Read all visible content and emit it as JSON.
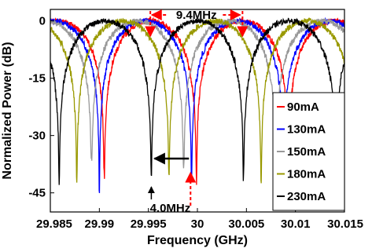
{
  "chart_data": {
    "type": "line",
    "title": "",
    "xlabel": "Frequency (GHz)",
    "ylabel": "Normalized Power (dB)",
    "xlim": [
      29.985,
      30.015
    ],
    "ylim": [
      -50,
      3
    ],
    "xticks": [
      29.985,
      29.99,
      29.995,
      30,
      30.005,
      30.01,
      30.015
    ],
    "xtick_labels": [
      "29.985",
      "29.99",
      "29.995",
      "30",
      "30.005",
      "30.01",
      "30.015"
    ],
    "yticks": [
      0,
      -15,
      -30,
      -45
    ],
    "ytick_labels": [
      "0",
      "-15",
      "-30",
      "-45"
    ],
    "grid": false,
    "legend_position": "right",
    "free_spectral_range_mhz": 9.4,
    "series": [
      {
        "name": "90mA",
        "color": "#ff0000",
        "peaks": [
          29.9858,
          29.9952,
          30.0046,
          30.014
        ],
        "minima": [
          29.9905,
          29.9999,
          30.0093
        ],
        "min_depth": -42
      },
      {
        "name": "130mA",
        "color": "#0000ff",
        "peaks": [
          29.9853,
          29.9947,
          30.0041,
          30.0135
        ],
        "minima": [
          29.99,
          29.9994,
          30.0088
        ],
        "min_depth": -45
      },
      {
        "name": "150mA",
        "color": "#999999",
        "peaks": [
          29.9845,
          29.9939,
          30.0033,
          30.0127
        ],
        "minima": [
          29.9892,
          29.9986,
          30.008
        ],
        "min_depth": -39
      },
      {
        "name": "180mA",
        "color": "#999900",
        "peaks": [
          29.983,
          29.9924,
          30.0018,
          30.0112
        ],
        "minima": [
          29.9877,
          29.9971,
          30.0065
        ],
        "min_depth": -43
      },
      {
        "name": "230mA",
        "color": "#000000",
        "peaks": [
          29.9812,
          29.9906,
          30.0,
          30.0094
        ],
        "minima": [
          29.9859,
          29.9953,
          30.0047,
          30.0141
        ],
        "min_depth": -43
      }
    ],
    "annotations": [
      {
        "text": "9.4MHz",
        "type": "peak-spacing",
        "x_from": 29.9952,
        "x_to": 30.0046,
        "color": "#ff0000"
      },
      {
        "text": "4.0MHz",
        "type": "shift",
        "x_from": 29.9993,
        "x_to": 29.9953,
        "color": "#000000"
      }
    ]
  }
}
